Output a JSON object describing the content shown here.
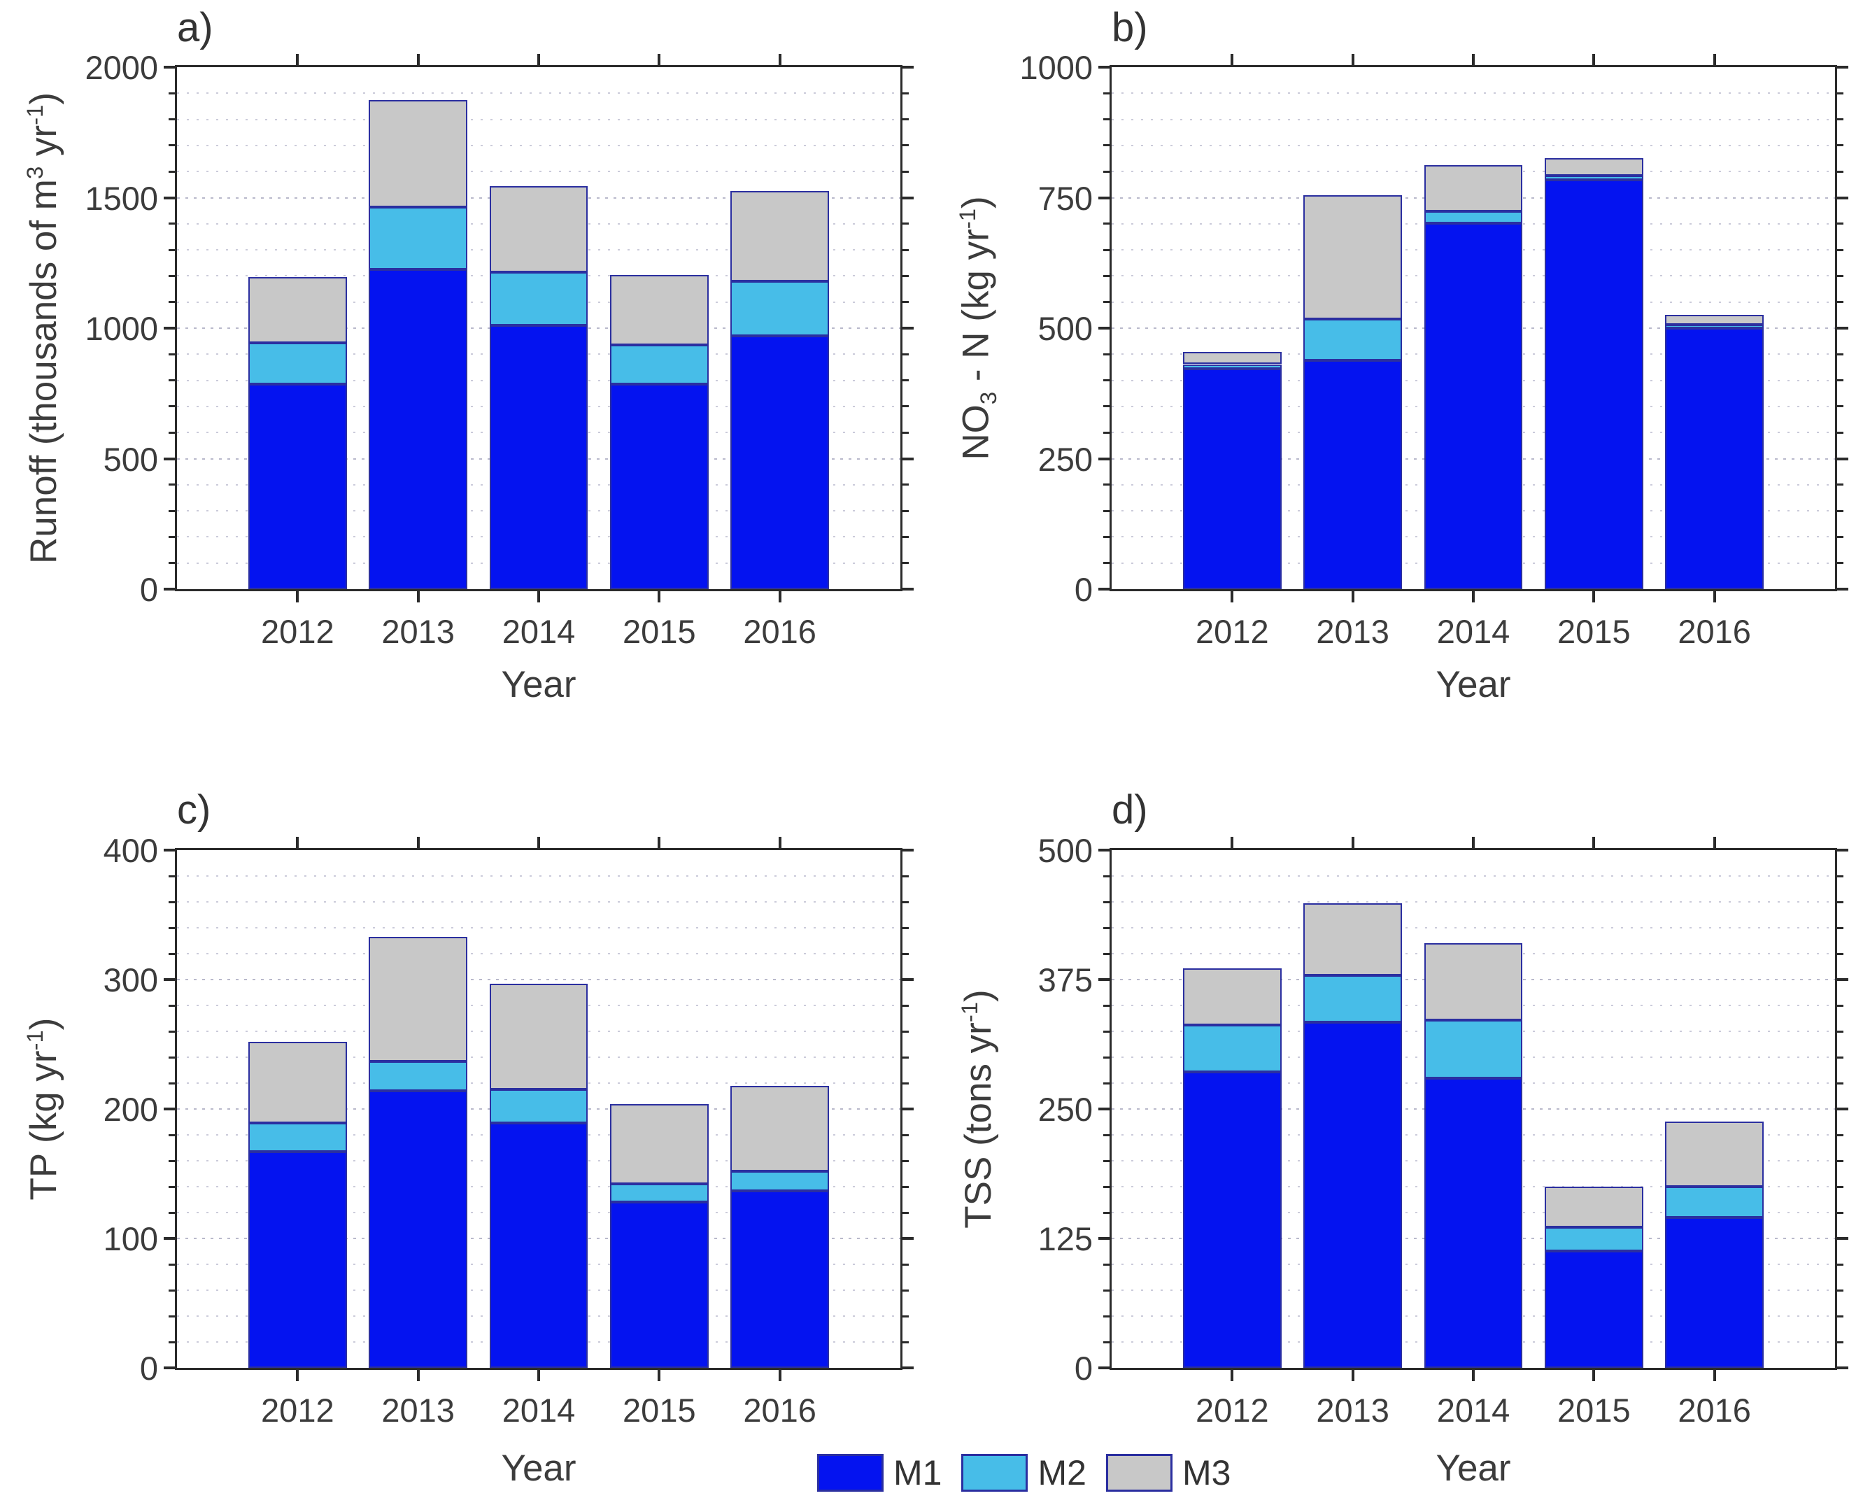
{
  "figure": {
    "background": "#ffffff",
    "bar_edge_color": "#2b2fa0",
    "axis_color": "#2b2b2b",
    "text_color": "#3c3c3c"
  },
  "legend": {
    "position": "bottom-center",
    "items": [
      {
        "label": "M1",
        "color": "#0413f0"
      },
      {
        "label": "M2",
        "color": "#47bde8"
      },
      {
        "label": "M3",
        "color": "#c8c8c8"
      }
    ]
  },
  "chart_data": [
    {
      "id": "a",
      "type": "bar",
      "stacked": true,
      "title": "a)",
      "xlabel": "Year",
      "ylabel_text": "Runoff (thousands of m3 yr-1)",
      "ylabel_parts": [
        [
          "t",
          "Runoff (thousands of m"
        ],
        [
          "sup",
          "3"
        ],
        [
          "t",
          " yr"
        ],
        [
          "sup",
          "-1"
        ],
        [
          "t",
          ")"
        ]
      ],
      "categories": [
        "2012",
        "2013",
        "2014",
        "2015",
        "2016"
      ],
      "ylim": [
        0,
        2000
      ],
      "yticks": [
        0,
        500,
        1000,
        1500,
        2000
      ],
      "minor_step": 100,
      "grid": "dotted-horizontal",
      "series": [
        {
          "name": "M1",
          "color": "#0413f0",
          "values": [
            785,
            1225,
            1010,
            785,
            970
          ]
        },
        {
          "name": "M2",
          "color": "#47bde8",
          "values": [
            158,
            240,
            205,
            150,
            210
          ]
        },
        {
          "name": "M3",
          "color": "#c8c8c8",
          "values": [
            252,
            410,
            330,
            270,
            345
          ]
        }
      ]
    },
    {
      "id": "b",
      "type": "bar",
      "stacked": true,
      "title": "b)",
      "xlabel": "Year",
      "ylabel_text": "NO3 - N (kg yr-1)",
      "ylabel_parts": [
        [
          "t",
          "NO"
        ],
        [
          "sub",
          "3"
        ],
        [
          "t",
          " - N (kg yr"
        ],
        [
          "sup",
          "-1"
        ],
        [
          "t",
          ")"
        ]
      ],
      "categories": [
        "2012",
        "2013",
        "2014",
        "2015",
        "2016"
      ],
      "ylim": [
        0,
        1000
      ],
      "yticks": [
        0,
        250,
        500,
        750,
        1000
      ],
      "minor_step": 50,
      "grid": "dotted-horizontal",
      "series": [
        {
          "name": "M1",
          "color": "#0413f0",
          "values": [
            422,
            439,
            701,
            784,
            500
          ]
        },
        {
          "name": "M2",
          "color": "#47bde8",
          "values": [
            9,
            78,
            23,
            8,
            7
          ]
        },
        {
          "name": "M3",
          "color": "#c8c8c8",
          "values": [
            24,
            238,
            89,
            34,
            18
          ]
        }
      ]
    },
    {
      "id": "c",
      "type": "bar",
      "stacked": true,
      "title": "c)",
      "xlabel": "Year",
      "ylabel_text": "TP (kg yr-1)",
      "ylabel_parts": [
        [
          "t",
          "TP (kg yr"
        ],
        [
          "sup",
          "-1"
        ],
        [
          "t",
          ")"
        ]
      ],
      "categories": [
        "2012",
        "2013",
        "2014",
        "2015",
        "2016"
      ],
      "ylim": [
        0,
        400
      ],
      "yticks": [
        0,
        100,
        200,
        300,
        400
      ],
      "minor_step": 20,
      "grid": "dotted-horizontal",
      "series": [
        {
          "name": "M1",
          "color": "#0413f0",
          "values": [
            167,
            214,
            189,
            128,
            137
          ]
        },
        {
          "name": "M2",
          "color": "#47bde8",
          "values": [
            22,
            23,
            26,
            14,
            15
          ]
        },
        {
          "name": "M3",
          "color": "#c8c8c8",
          "values": [
            63,
            96,
            82,
            62,
            66
          ]
        }
      ]
    },
    {
      "id": "d",
      "type": "bar",
      "stacked": true,
      "title": "d)",
      "xlabel": "Year",
      "ylabel_text": "TSS (tons yr-1)",
      "ylabel_parts": [
        [
          "t",
          "TSS (tons yr"
        ],
        [
          "sup",
          "-1"
        ],
        [
          "t",
          ")"
        ]
      ],
      "categories": [
        "2012",
        "2013",
        "2014",
        "2015",
        "2016"
      ],
      "ylim": [
        0,
        500
      ],
      "yticks": [
        0,
        125,
        250,
        375,
        500
      ],
      "minor_step": 25,
      "grid": "dotted-horizontal",
      "series": [
        {
          "name": "M1",
          "color": "#0413f0",
          "values": [
            286,
            334,
            280,
            113,
            145
          ]
        },
        {
          "name": "M2",
          "color": "#47bde8",
          "values": [
            45,
            45,
            56,
            23,
            30
          ]
        },
        {
          "name": "M3",
          "color": "#c8c8c8",
          "values": [
            55,
            70,
            74,
            39,
            63
          ]
        }
      ]
    }
  ]
}
